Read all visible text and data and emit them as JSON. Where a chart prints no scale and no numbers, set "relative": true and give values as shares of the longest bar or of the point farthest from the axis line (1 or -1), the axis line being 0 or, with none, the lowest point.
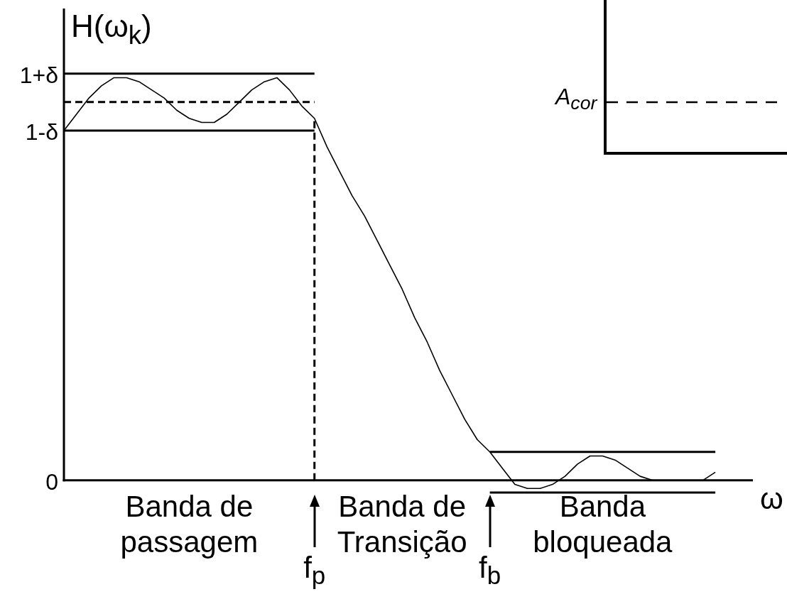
{
  "chart_data": [
    {
      "type": "line",
      "relative": true,
      "marker": "none",
      "xlabel": "ω",
      "ylabel": "H(ω$_{k}$)",
      "categories": [
        null,
        null,
        null,
        null,
        null,
        null,
        null,
        null,
        null,
        null,
        null,
        null,
        null,
        null,
        null,
        null,
        null,
        null,
        null,
        null,
        "f$_{p}$",
        null,
        null,
        null,
        null,
        null,
        null,
        null,
        null,
        null,
        null,
        null,
        null,
        null,
        "f$_{b}$",
        null,
        null,
        null,
        null,
        null,
        null,
        null,
        null,
        null,
        null,
        null,
        null,
        null,
        null,
        null,
        null,
        null,
        null,
        null,
        null,
        null
      ],
      "series": [
        {
          "color": "#000000",
          "values": [
            0.86,
            0.9,
            0.94,
            0.97,
            0.99,
            0.99,
            0.98,
            0.96,
            0.94,
            0.91,
            0.89,
            0.88,
            0.88,
            0.9,
            0.93,
            0.96,
            0.98,
            0.99,
            0.96,
            0.92,
            0.89,
            0.82,
            0.76,
            0.7,
            0.65,
            0.59,
            0.53,
            0.47,
            0.4,
            0.34,
            0.27,
            0.21,
            0.15,
            0.1,
            0.07,
            0.03,
            -0.01,
            -0.02,
            -0.02,
            -0.01,
            0.01,
            0.04,
            0.06,
            0.06,
            0.05,
            0.03,
            0.01,
            0,
            0,
            0,
            0,
            0,
            0.02,
            null,
            null,
            null
          ]
        },
        {
          "name": "1+δ",
          "color": "#000000",
          "values": [
            1,
            1,
            1,
            1,
            1,
            1,
            1,
            1,
            1,
            1,
            1,
            1,
            1,
            1,
            1,
            1,
            1,
            1,
            1,
            1,
            1,
            null,
            null,
            null,
            null,
            null,
            null,
            null,
            null,
            null,
            null,
            null,
            null,
            null,
            null,
            null,
            null,
            null,
            null,
            null,
            null,
            null,
            null,
            null,
            null,
            null,
            null,
            null,
            null,
            null,
            null,
            null,
            null,
            null,
            null,
            null
          ]
        },
        {
          "color": "#000000",
          "line_style": "dashed",
          "values": [
            0.93,
            0.93,
            0.93,
            0.93,
            0.93,
            0.93,
            0.93,
            0.93,
            0.93,
            0.93,
            0.93,
            0.93,
            0.93,
            0.93,
            0.93,
            0.93,
            0.93,
            0.93,
            0.93,
            0.93,
            0.93,
            null,
            null,
            null,
            null,
            null,
            null,
            null,
            null,
            null,
            null,
            null,
            null,
            null,
            null,
            null,
            null,
            null,
            null,
            null,
            null,
            null,
            null,
            null,
            null,
            null,
            null,
            null,
            null,
            null,
            null,
            null,
            null,
            null,
            null,
            null
          ]
        },
        {
          "name": "1-δ",
          "color": "#000000",
          "values": [
            0.86,
            0.86,
            0.86,
            0.86,
            0.86,
            0.86,
            0.86,
            0.86,
            0.86,
            0.86,
            0.86,
            0.86,
            0.86,
            0.86,
            0.86,
            0.86,
            0.86,
            0.86,
            0.86,
            0.86,
            0.86,
            null,
            null,
            null,
            null,
            null,
            null,
            null,
            null,
            null,
            null,
            null,
            null,
            null,
            null,
            null,
            null,
            null,
            null,
            null,
            null,
            null,
            null,
            null,
            null,
            null,
            null,
            null,
            null,
            null,
            null,
            null,
            null,
            null,
            null,
            null
          ]
        },
        {
          "color": "#000000",
          "values": [
            null,
            null,
            null,
            null,
            null,
            null,
            null,
            null,
            null,
            null,
            null,
            null,
            null,
            null,
            null,
            null,
            null,
            null,
            null,
            null,
            null,
            null,
            null,
            null,
            null,
            null,
            null,
            null,
            null,
            null,
            null,
            null,
            null,
            null,
            0.07,
            0.07,
            0.07,
            0.07,
            0.07,
            0.07,
            0.07,
            0.07,
            0.07,
            0.07,
            0.07,
            0.07,
            0.07,
            0.07,
            0.07,
            0.07,
            0.07,
            0.07,
            0.07,
            null,
            null,
            null
          ]
        },
        {
          "color": "#000000",
          "values": [
            null,
            null,
            null,
            null,
            null,
            null,
            null,
            null,
            null,
            null,
            null,
            null,
            null,
            null,
            null,
            null,
            null,
            null,
            null,
            null,
            null,
            null,
            null,
            null,
            null,
            null,
            null,
            null,
            null,
            null,
            null,
            null,
            null,
            null,
            -0.03,
            -0.03,
            -0.03,
            -0.03,
            -0.03,
            -0.03,
            -0.03,
            -0.03,
            -0.03,
            -0.03,
            -0.03,
            -0.03,
            -0.03,
            -0.03,
            -0.03,
            -0.03,
            -0.03,
            -0.03,
            -0.03,
            null,
            null,
            null
          ]
        }
      ],
      "ref_lines": [
        {
          "axis": "x",
          "value": "f$_{p}$",
          "line_style": "dashed",
          "color": "#000000"
        },
        {
          "axis": "y",
          "value": 0,
          "label": "0",
          "color": "#000000"
        }
      ],
      "annotations": [
        "Banda de passagem",
        "Banda de Transição",
        "Banda bloqueada"
      ]
    },
    {
      "type": "other",
      "annotations": [
        "A$_{cor}$"
      ]
    }
  ]
}
